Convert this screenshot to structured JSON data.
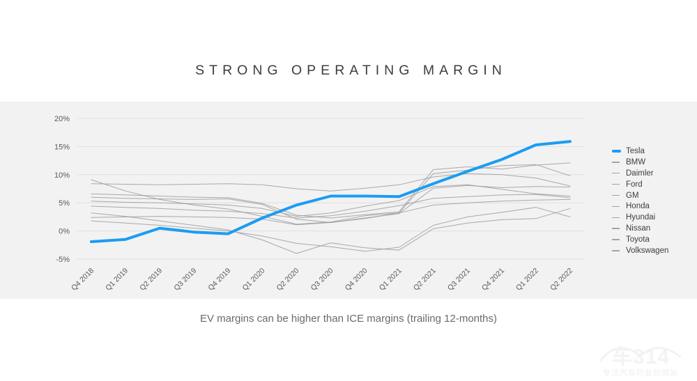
{
  "page": {
    "title": "STRONG OPERATING MARGIN",
    "caption": "EV margins can be higher than ICE margins (trailing 12-months)"
  },
  "watermark": {
    "brand": "车314",
    "tagline": "专注汽车行业的网站"
  },
  "colors": {
    "tesla_blue": "#1b9cf2",
    "competitor_gray": "#9b9b9b",
    "band_background": "#f2f2f2",
    "gridline": "#e0e0e0",
    "axis_text": "#595959",
    "legend_text": "#3d3d3d",
    "title_text": "#3c3c42"
  },
  "chart_data": {
    "type": "line",
    "title": "STRONG OPERATING MARGIN",
    "xlabel": "",
    "ylabel": "",
    "grid": true,
    "legend_position": "right",
    "ylim": [
      -5,
      20
    ],
    "y_ticks": [
      {
        "label": "20%",
        "value": 20
      },
      {
        "label": "15%",
        "value": 15
      },
      {
        "label": "10%",
        "value": 10
      },
      {
        "label": "5%",
        "value": 5
      },
      {
        "label": "0%",
        "value": 0
      },
      {
        "label": "-5%",
        "value": -5
      }
    ],
    "categories": [
      "Q4 2018",
      "Q1 2019",
      "Q2 2019",
      "Q3 2019",
      "Q4 2019",
      "Q1 2020",
      "Q2 2020",
      "Q3 2020",
      "Q4 2020",
      "Q1 2021",
      "Q2 2021",
      "Q3 2021",
      "Q4 2021",
      "Q1 2022",
      "Q2 2022"
    ],
    "series": [
      {
        "name": "Tesla",
        "role": "highlight",
        "values": [
          -1.9,
          -1.5,
          0.5,
          -0.2,
          -0.5,
          2.3,
          4.6,
          6.2,
          6.2,
          6.1,
          8.4,
          10.6,
          12.7,
          15.3,
          15.9
        ]
      },
      {
        "name": "BMW",
        "role": "competitor",
        "values": [
          6.6,
          6.4,
          6.2,
          6.0,
          5.9,
          4.9,
          2.8,
          2.3,
          2.9,
          3.4,
          10.9,
          11.4,
          11.0,
          11.7,
          12.1
        ]
      },
      {
        "name": "Daimler",
        "role": "competitor",
        "values": [
          9.1,
          7.1,
          5.6,
          4.6,
          3.9,
          2.6,
          1.2,
          1.6,
          2.7,
          3.2,
          10.2,
          10.8,
          11.6,
          11.8,
          9.8
        ]
      },
      {
        "name": "Ford",
        "role": "competitor",
        "values": [
          1.8,
          1.4,
          1.0,
          0.5,
          0.0,
          -0.9,
          -2.2,
          -2.8,
          -3.6,
          -2.9,
          1.0,
          2.5,
          3.3,
          4.2,
          2.5
        ]
      },
      {
        "name": "GM",
        "role": "competitor",
        "values": [
          5.3,
          5.1,
          5.0,
          4.8,
          4.6,
          4.0,
          2.6,
          3.2,
          4.4,
          5.4,
          7.9,
          8.2,
          7.4,
          6.6,
          6.2
        ]
      },
      {
        "name": "Honda",
        "role": "competitor",
        "values": [
          4.4,
          4.2,
          4.0,
          3.7,
          3.5,
          3.1,
          2.3,
          2.7,
          3.5,
          4.5,
          5.8,
          6.1,
          6.4,
          6.5,
          5.9
        ]
      },
      {
        "name": "Hyundai",
        "role": "competitor",
        "values": [
          2.4,
          2.5,
          2.6,
          2.5,
          2.4,
          2.1,
          1.1,
          1.5,
          2.2,
          3.2,
          4.6,
          5.0,
          5.3,
          5.5,
          5.6
        ]
      },
      {
        "name": "Nissan",
        "role": "competitor",
        "values": [
          3.2,
          2.6,
          1.8,
          1.0,
          0.2,
          -1.6,
          -4.0,
          -2.1,
          -3.0,
          -3.4,
          0.4,
          1.4,
          2.0,
          2.2,
          4.0
        ]
      },
      {
        "name": "Toyota",
        "role": "competitor",
        "values": [
          8.4,
          8.3,
          8.2,
          8.3,
          8.4,
          8.2,
          7.5,
          7.1,
          7.6,
          8.2,
          9.6,
          10.2,
          10.0,
          9.4,
          8.0
        ]
      },
      {
        "name": "Volkswagen",
        "role": "competitor",
        "values": [
          6.0,
          5.8,
          5.7,
          5.6,
          5.7,
          4.7,
          2.1,
          1.5,
          2.3,
          3.1,
          7.6,
          8.1,
          7.7,
          7.9,
          7.8
        ]
      }
    ]
  }
}
